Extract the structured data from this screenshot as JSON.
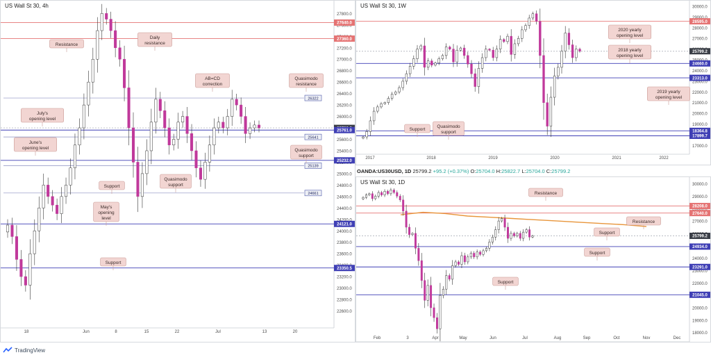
{
  "brand": {
    "name": "TradingView"
  },
  "colors": {
    "resistance": "#e57373",
    "support": "#3f3fb5",
    "up": "#ffffff",
    "down": "#c0399b",
    "wick": "#333333",
    "label_bg": "#f2d5d2",
    "label_border": "#c99a95",
    "ma": "#e8953a"
  },
  "chart_data": [
    {
      "type": "candlestick",
      "title": "US Wall St 30, 4h",
      "ylim": [
        22400,
        27950
      ],
      "y_ticks": [
        "27800.0",
        "27600.0",
        "27400.0",
        "27200.0",
        "27000.0",
        "26800.0",
        "26600.0",
        "26400.0",
        "26200.0",
        "26000.0",
        "25800.0",
        "25600.0",
        "25400.0",
        "25200.0",
        "25000.0",
        "24800.0",
        "24600.0",
        "24400.0",
        "24200.0",
        "24000.0",
        "23800.0",
        "23600.0",
        "23400.0",
        "23200.0",
        "23000.0",
        "22800.0",
        "22600.0"
      ],
      "x_ticks": [
        "18",
        "Jun",
        "8",
        "15",
        "22",
        "Jul",
        "13",
        "20"
      ],
      "levels": [
        {
          "value": 27640.0,
          "label": "27640.0",
          "kind": "resistance"
        },
        {
          "value": 27360.0,
          "label": "27360.0",
          "kind": "resistance"
        },
        {
          "value": 26322,
          "label": "26322",
          "kind": "box"
        },
        {
          "value": 25799.2,
          "label": "25799.2",
          "kind": "price"
        },
        {
          "value": 25761.0,
          "label": "25761.0",
          "kind": "support"
        },
        {
          "value": 25641,
          "label": "25641",
          "kind": "box"
        },
        {
          "value": 25232.0,
          "label": "25232.0",
          "kind": "support"
        },
        {
          "value": 25139,
          "label": "25139",
          "kind": "box"
        },
        {
          "value": 24661,
          "label": "24661",
          "kind": "box"
        },
        {
          "value": 24121.0,
          "label": "24121.0",
          "kind": "support"
        },
        {
          "value": 23350.5,
          "label": "23350.5",
          "kind": "support"
        }
      ],
      "annotations": [
        {
          "text": [
            "Resistance"
          ]
        },
        {
          "text": [
            "Daily",
            "resistance"
          ]
        },
        {
          "text": [
            "AB=CD",
            "correction"
          ]
        },
        {
          "text": [
            "Quasimodo",
            "resistance"
          ]
        },
        {
          "text": [
            "July's",
            "opening level"
          ]
        },
        {
          "text": [
            "June's",
            "opening level"
          ]
        },
        {
          "text": [
            "Quasimodo",
            "support"
          ]
        },
        {
          "text": [
            "Quasimodo",
            "support"
          ]
        },
        {
          "text": [
            "Support"
          ]
        },
        {
          "text": [
            "May's",
            "opening",
            "level"
          ]
        },
        {
          "text": [
            "Support"
          ]
        }
      ],
      "series": [
        {
          "values": [
            24100,
            23900,
            23500,
            23200,
            23050,
            23600,
            24000,
            24400,
            24800,
            24600,
            24450,
            24300,
            24600,
            24800,
            25100,
            25500,
            25800,
            26200,
            26600,
            27000,
            27500,
            27800,
            27700,
            27500,
            27200,
            27000,
            26500,
            25800,
            25200,
            24600,
            25000,
            25400,
            25900,
            26300,
            26100,
            25800,
            25500,
            25600,
            25900,
            26000,
            25700,
            25400,
            25100,
            24900,
            25200,
            25500,
            25800,
            25900,
            25800,
            26000,
            26300,
            26200,
            26000,
            25700,
            25800,
            25850,
            25799
          ]
        }
      ]
    },
    {
      "type": "candlestick",
      "title": "US Wall St 30, 1W",
      "ylim": [
        16700,
        30000
      ],
      "y_ticks": [
        "30000.0",
        "29000.0",
        "28000.0",
        "27000.0",
        "26000.0",
        "25000.0",
        "24000.0",
        "23000.0",
        "22000.0",
        "21000.0",
        "20000.0",
        "19000.0",
        "18000.0",
        "17000.0"
      ],
      "x_ticks": [
        "2017",
        "2018",
        "2019",
        "2020",
        "2021",
        "2022"
      ],
      "levels": [
        {
          "value": 28595.0,
          "label": "28595.0",
          "kind": "resistance"
        },
        {
          "value": 25799.2,
          "label": "25799.2",
          "kind": "price"
        },
        {
          "value": 24660.0,
          "label": "24660.0",
          "kind": "support"
        },
        {
          "value": 23313.0,
          "label": "23313.0",
          "kind": "support"
        },
        {
          "value": 18364.8,
          "label": "18364.8",
          "kind": "support"
        },
        {
          "value": 17899.7,
          "label": "17899.7",
          "kind": "support"
        }
      ],
      "annotations": [
        {
          "text": [
            "2020 yearly",
            "opening level"
          ]
        },
        {
          "text": [
            "2018 yearly",
            "opening level"
          ]
        },
        {
          "text": [
            "2019 yearly",
            "opening level"
          ]
        },
        {
          "text": [
            "Support"
          ]
        },
        {
          "text": [
            "Quasimodo",
            "support"
          ]
        }
      ],
      "series": [
        {
          "values": [
            17800,
            18300,
            19300,
            20200,
            20600,
            20900,
            21000,
            21400,
            21800,
            22000,
            22400,
            23000,
            23700,
            24400,
            25100,
            26000,
            26300,
            24300,
            24900,
            24500,
            24700,
            25100,
            25400,
            26200,
            26000,
            24800,
            25900,
            26100,
            25400,
            24600,
            23700,
            22500,
            24200,
            25200,
            26000,
            25900,
            25200,
            26000,
            26900,
            26700,
            27200,
            25500,
            26500,
            27000,
            27800,
            28200,
            28900,
            29300,
            28600,
            25400,
            21000,
            18800,
            21500,
            23500,
            24300,
            25800,
            27500,
            26400,
            25200,
            26000,
            25799
          ]
        }
      ]
    },
    {
      "type": "candlestick",
      "title": "US Wall St 30, 1D",
      "symbol": "OANDA:US30USD, 1D",
      "ohlc": {
        "last": "25799.2",
        "change": "+95.2 (+0.37%)",
        "O": "25704.0",
        "H": "25822.7",
        "L": "25704.0",
        "C": "25799.2"
      },
      "ylim": [
        17700,
        30200
      ],
      "y_ticks": [
        "30000.0",
        "29000.0",
        "28000.0",
        "27000.0",
        "26000.0",
        "25000.0",
        "24000.0",
        "23000.0",
        "22000.0",
        "21000.0",
        "20000.0",
        "19000.0",
        "18000.0"
      ],
      "x_ticks": [
        "Feb",
        "3",
        "Apr",
        "May",
        "Jun",
        "Jul",
        "Aug",
        "Sep",
        "Oct",
        "Nov",
        "Dec"
      ],
      "levels": [
        {
          "value": 28208.0,
          "label": "28208.0",
          "kind": "resistance"
        },
        {
          "value": 27640.0,
          "label": "27640.0",
          "kind": "resistance"
        },
        {
          "value": 25799.2,
          "label": "25799.2",
          "kind": "price"
        },
        {
          "value": 24934.0,
          "label": "24934.0",
          "kind": "support"
        },
        {
          "value": 23291.0,
          "label": "23291.0",
          "kind": "support"
        },
        {
          "value": 21045.0,
          "label": "21045.0",
          "kind": "support"
        }
      ],
      "annotations": [
        {
          "text": [
            "Resistance"
          ]
        },
        {
          "text": [
            "Resistance"
          ]
        },
        {
          "text": [
            "Support"
          ]
        },
        {
          "text": [
            "Support"
          ]
        },
        {
          "text": [
            "Support"
          ]
        }
      ],
      "series": [
        {
          "values": [
            28900,
            29100,
            29200,
            28800,
            29000,
            29300,
            29100,
            29400,
            29200,
            29500,
            29300,
            29000,
            28700,
            27800,
            26500,
            25900,
            26000,
            24800,
            23800,
            22200,
            20600,
            21800,
            20000,
            19200,
            18300,
            21000,
            21500,
            22600,
            22300,
            23400,
            23700,
            23500,
            24200,
            23700,
            24100,
            24400,
            24100,
            24500,
            24300,
            24600,
            24800,
            25300,
            25700,
            26300,
            27000,
            27200,
            26500,
            25600,
            26000,
            25800,
            26000,
            25600,
            26100,
            26300,
            25700,
            25799
          ]
        }
      ],
      "ma": [
        27500,
        27700,
        27600,
        27400,
        27300,
        27200,
        27100,
        27000,
        26900,
        26800,
        26700,
        26550
      ]
    }
  ]
}
